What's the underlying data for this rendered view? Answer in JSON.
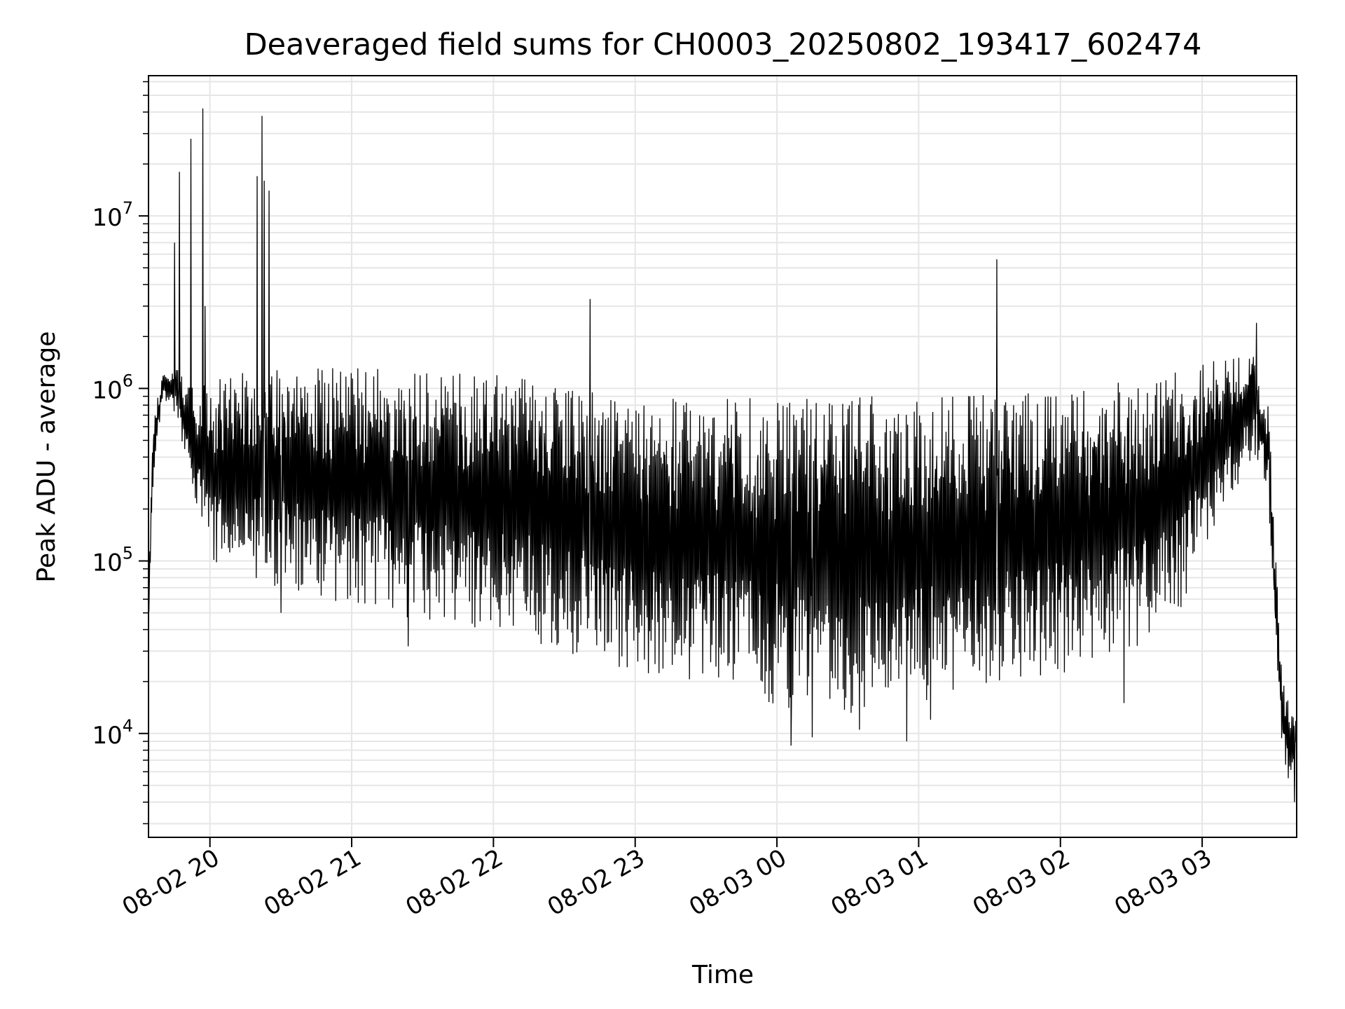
{
  "chart_data": {
    "type": "line",
    "title": "Deaveraged field sums for CH0003_20250802_193417_602474",
    "xlabel": "Time",
    "ylabel": "Peak ADU - average",
    "yscale": "log",
    "grid": true,
    "legend": "none",
    "line_color": "#000000",
    "grid_color": "#e6e6e6",
    "xlim": [
      "2025-08-02 19:34",
      "2025-08-03 03:40"
    ],
    "ylim": [
      2500,
      65000000
    ],
    "x_ticks": [
      {
        "value": "2025-08-02 20:00",
        "label": "08-02 20"
      },
      {
        "value": "2025-08-02 21:00",
        "label": "08-02 21"
      },
      {
        "value": "2025-08-02 22:00",
        "label": "08-02 22"
      },
      {
        "value": "2025-08-02 23:00",
        "label": "08-02 23"
      },
      {
        "value": "2025-08-03 00:00",
        "label": "08-03 00"
      },
      {
        "value": "2025-08-03 01:00",
        "label": "08-03 01"
      },
      {
        "value": "2025-08-03 02:00",
        "label": "08-03 02"
      },
      {
        "value": "2025-08-03 03:00",
        "label": "08-03 03"
      }
    ],
    "y_ticks": [
      {
        "value": 10000,
        "base": "10",
        "exp": "4"
      },
      {
        "value": 100000,
        "base": "10",
        "exp": "5"
      },
      {
        "value": 1000000,
        "base": "10",
        "exp": "6"
      },
      {
        "value": 10000000,
        "base": "10",
        "exp": "7"
      }
    ],
    "envelope": [
      {
        "x": "2025-08-02 19:34",
        "low": 40000,
        "high": 60000
      },
      {
        "x": "2025-08-02 19:36",
        "low": 300000,
        "high": 700000
      },
      {
        "x": "2025-08-02 19:40",
        "low": 900000,
        "high": 1200000
      },
      {
        "x": "2025-08-02 19:46",
        "low": 700000,
        "high": 1300000
      },
      {
        "x": "2025-08-02 19:52",
        "low": 250000,
        "high": 1100000
      },
      {
        "x": "2025-08-02 20:00",
        "low": 100000,
        "high": 1100000
      },
      {
        "x": "2025-08-02 20:15",
        "low": 80000,
        "high": 1300000
      },
      {
        "x": "2025-08-02 20:30",
        "low": 70000,
        "high": 1300000
      },
      {
        "x": "2025-08-02 21:00",
        "low": 55000,
        "high": 1350000
      },
      {
        "x": "2025-08-02 21:30",
        "low": 45000,
        "high": 1300000
      },
      {
        "x": "2025-08-02 22:00",
        "low": 40000,
        "high": 1200000
      },
      {
        "x": "2025-08-02 22:30",
        "low": 30000,
        "high": 1100000
      },
      {
        "x": "2025-08-02 22:45",
        "low": 25000,
        "high": 950000
      },
      {
        "x": "2025-08-02 23:00",
        "low": 22000,
        "high": 900000
      },
      {
        "x": "2025-08-02 23:30",
        "low": 20000,
        "high": 880000
      },
      {
        "x": "2025-08-03 00:00",
        "low": 14000,
        "high": 900000
      },
      {
        "x": "2025-08-03 00:30",
        "low": 13000,
        "high": 920000
      },
      {
        "x": "2025-08-03 01:00",
        "low": 15000,
        "high": 900000
      },
      {
        "x": "2025-08-03 01:30",
        "low": 18000,
        "high": 950000
      },
      {
        "x": "2025-08-03 02:00",
        "low": 22000,
        "high": 1000000
      },
      {
        "x": "2025-08-03 02:30",
        "low": 30000,
        "high": 1100000
      },
      {
        "x": "2025-08-03 02:50",
        "low": 50000,
        "high": 1400000
      },
      {
        "x": "2025-08-03 03:10",
        "low": 200000,
        "high": 1500000
      },
      {
        "x": "2025-08-03 03:22",
        "low": 400000,
        "high": 1600000
      },
      {
        "x": "2025-08-03 03:28",
        "low": 250000,
        "high": 800000
      },
      {
        "x": "2025-08-03 03:31",
        "low": 30000,
        "high": 120000
      },
      {
        "x": "2025-08-03 03:34",
        "low": 8000,
        "high": 20000
      },
      {
        "x": "2025-08-03 03:37",
        "low": 5000,
        "high": 15000
      },
      {
        "x": "2025-08-03 03:40",
        "low": 8000,
        "high": 12000
      }
    ],
    "spikes": [
      {
        "x": "2025-08-02 19:45",
        "y": 7000000
      },
      {
        "x": "2025-08-02 19:47",
        "y": 18000000
      },
      {
        "x": "2025-08-02 19:52",
        "y": 28000000
      },
      {
        "x": "2025-08-02 19:57",
        "y": 42000000
      },
      {
        "x": "2025-08-02 19:58",
        "y": 3000000
      },
      {
        "x": "2025-08-02 20:20",
        "y": 17000000
      },
      {
        "x": "2025-08-02 20:22",
        "y": 38000000
      },
      {
        "x": "2025-08-02 20:23",
        "y": 16000000
      },
      {
        "x": "2025-08-02 20:25",
        "y": 14000000
      },
      {
        "x": "2025-08-02 22:41",
        "y": 3300000
      },
      {
        "x": "2025-08-03 01:33",
        "y": 5600000
      },
      {
        "x": "2025-08-03 03:23",
        "y": 2400000
      }
    ],
    "dips": [
      {
        "x": "2025-08-02 20:30",
        "y": 50000
      },
      {
        "x": "2025-08-02 21:24",
        "y": 32000
      },
      {
        "x": "2025-08-03 00:06",
        "y": 8500
      },
      {
        "x": "2025-08-03 00:15",
        "y": 9500
      },
      {
        "x": "2025-08-03 00:35",
        "y": 10500
      },
      {
        "x": "2025-08-03 00:55",
        "y": 9000
      },
      {
        "x": "2025-08-03 01:05",
        "y": 12000
      },
      {
        "x": "2025-08-03 02:27",
        "y": 15000
      },
      {
        "x": "2025-08-03 03:39",
        "y": 4000
      }
    ]
  }
}
